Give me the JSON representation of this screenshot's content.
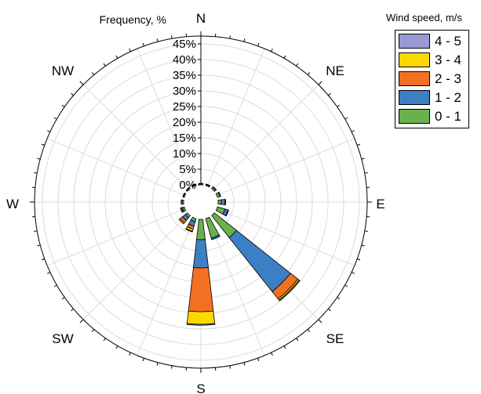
{
  "chart_data": {
    "type": "wind-rose",
    "title": "",
    "radial_axis_label": "Frequency, %",
    "radial_ticks": [
      "0%",
      "5%",
      "10%",
      "15%",
      "20%",
      "25%",
      "30%",
      "35%",
      "40%",
      "45%"
    ],
    "rlim": [
      0,
      45
    ],
    "grid": true,
    "direction_labels": [
      "N",
      "NE",
      "E",
      "SE",
      "S",
      "SW",
      "W",
      "NW"
    ],
    "legend": {
      "title": "Wind speed, m/s",
      "placement": "top-right",
      "items": [
        "4 - 5",
        "3 - 4",
        "2 - 3",
        "1 - 2",
        "0 - 1"
      ]
    },
    "sector_directions": [
      0,
      22.5,
      45,
      67.5,
      90,
      112.5,
      135,
      157.5,
      180,
      202.5,
      225,
      247.5,
      270,
      292.5,
      315,
      337.5
    ],
    "series": [
      {
        "name": "0 - 1",
        "color": "#6ab04c",
        "values": [
          0.3,
          0.3,
          0.5,
          0.8,
          1.0,
          2.5,
          9.0,
          6.5,
          6.5,
          1.0,
          0.8,
          0.6,
          0.5,
          0.3,
          0.3,
          0.3
        ]
      },
      {
        "name": "1 - 2",
        "color": "#3d7fc4",
        "values": [
          0.2,
          0.2,
          0.3,
          0.3,
          1.2,
          1.0,
          22.0,
          0.5,
          9.0,
          1.5,
          1.2,
          0.4,
          0.3,
          0.2,
          0.2,
          0.2
        ]
      },
      {
        "name": "2 - 3",
        "color": "#f36f21",
        "values": [
          0,
          0,
          0,
          0,
          0.2,
          0.2,
          3.0,
          0,
          14.0,
          1.0,
          1.0,
          0.3,
          0,
          0,
          0,
          0
        ]
      },
      {
        "name": "3 - 4",
        "color": "#ffd700",
        "values": [
          0,
          0,
          0,
          0,
          0,
          0,
          0.5,
          0,
          4.0,
          0.7,
          0.4,
          0,
          0,
          0,
          0,
          0
        ]
      },
      {
        "name": "4 - 5",
        "color": "#9999d6",
        "values": [
          0,
          0,
          0,
          0,
          0,
          0,
          0.3,
          0,
          0.3,
          0.2,
          0,
          0,
          0,
          0,
          0,
          0
        ]
      }
    ]
  }
}
